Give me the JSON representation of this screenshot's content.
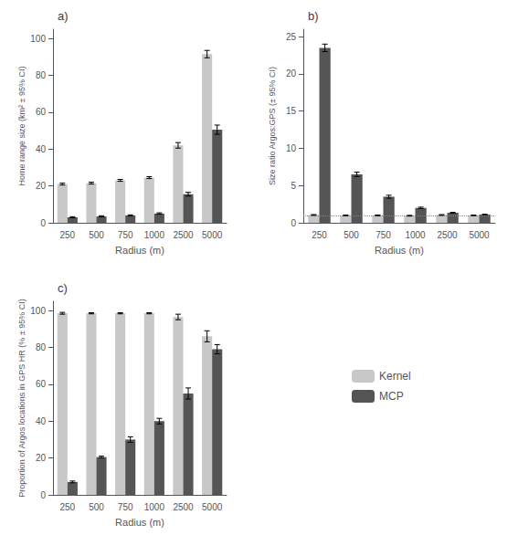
{
  "chart_data": [
    {
      "type": "bar",
      "title": "a)",
      "categories": [
        "250",
        "500",
        "750",
        "1000",
        "2500",
        "5000"
      ],
      "series": [
        {
          "name": "Kernel",
          "color": "#c8c8c8",
          "values": [
            21.0,
            21.5,
            23.0,
            24.5,
            42.0,
            91.5
          ],
          "errors": [
            0.5,
            0.5,
            0.5,
            0.5,
            1.5,
            2.0
          ]
        },
        {
          "name": "MCP",
          "color": "#555555",
          "values": [
            3.0,
            3.5,
            4.0,
            5.0,
            15.5,
            50.5
          ],
          "errors": [
            0.3,
            0.3,
            0.3,
            0.4,
            1.0,
            2.5
          ]
        }
      ],
      "xlabel": "Radius (m)",
      "ylabel": "Home range size (km² ± 95% CI)",
      "ylim": [
        0,
        105
      ],
      "yticks": [
        0,
        20,
        40,
        60,
        80,
        100
      ],
      "grid": false
    },
    {
      "type": "bar",
      "title": "b)",
      "categories": [
        "250",
        "500",
        "750",
        "1000",
        "2500",
        "5000"
      ],
      "series": [
        {
          "name": "Kernel",
          "color": "#c8c8c8",
          "values": [
            1.05,
            1.0,
            1.0,
            0.95,
            1.05,
            1.0
          ],
          "errors": [
            0.05,
            0.05,
            0.05,
            0.05,
            0.05,
            0.05
          ]
        },
        {
          "name": "MCP",
          "color": "#555555",
          "values": [
            23.5,
            6.5,
            3.5,
            2.0,
            1.35,
            1.1
          ],
          "errors": [
            0.5,
            0.3,
            0.2,
            0.1,
            0.05,
            0.05
          ]
        }
      ],
      "hline": 1.0,
      "xlabel": "Radius (m)",
      "ylabel": "Size ratio Argos:GPS (± 95% CI)",
      "ylim": [
        0,
        26
      ],
      "yticks": [
        0,
        5,
        10,
        15,
        20,
        25
      ],
      "grid": false
    },
    {
      "type": "bar",
      "title": "c)",
      "categories": [
        "250",
        "500",
        "750",
        "1000",
        "2500",
        "5000"
      ],
      "series": [
        {
          "name": "Kernel",
          "color": "#c8c8c8",
          "values": [
            98.5,
            98.5,
            98.5,
            98.5,
            96.5,
            86.0
          ],
          "errors": [
            0.5,
            0.3,
            0.3,
            0.3,
            1.5,
            3.0
          ]
        },
        {
          "name": "MCP",
          "color": "#555555",
          "values": [
            7.0,
            20.5,
            30.0,
            40.0,
            55.0,
            79.0
          ],
          "errors": [
            0.5,
            0.5,
            1.5,
            1.5,
            3.0,
            2.5
          ]
        }
      ],
      "xlabel": "Radius (m)",
      "ylabel": "Proportion of Argos locations in GPS HR (% ± 95% CI)",
      "ylim": [
        0,
        105
      ],
      "yticks": [
        0,
        20,
        40,
        60,
        80,
        100
      ],
      "grid": false,
      "legend": "lower right"
    }
  ]
}
